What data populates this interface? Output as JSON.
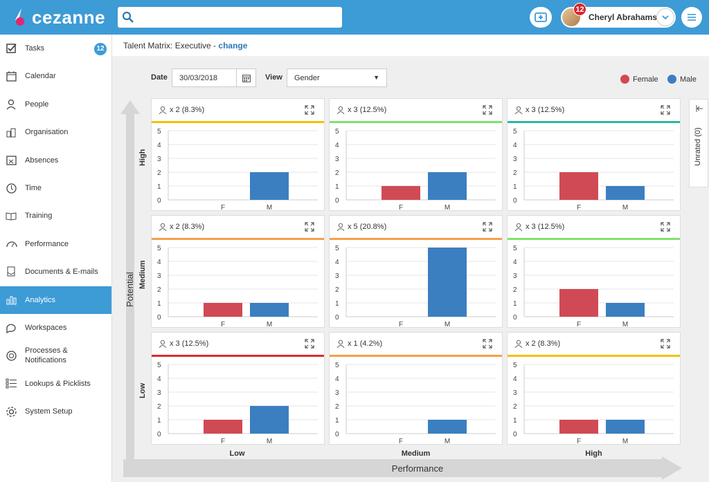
{
  "app": {
    "logo_text": "cezanne",
    "search_placeholder": ""
  },
  "user": {
    "name": "Cheryl Abrahams",
    "notifications": "12"
  },
  "sidebar": {
    "items": [
      {
        "label": "Tasks",
        "icon": "checkbox-icon",
        "badge": "12"
      },
      {
        "label": "Calendar",
        "icon": "calendar-icon"
      },
      {
        "label": "People",
        "icon": "people-icon"
      },
      {
        "label": "Organisation",
        "icon": "organisation-icon"
      },
      {
        "label": "Absences",
        "icon": "absences-icon"
      },
      {
        "label": "Time",
        "icon": "clock-icon"
      },
      {
        "label": "Training",
        "icon": "book-icon"
      },
      {
        "label": "Performance",
        "icon": "gauge-icon"
      },
      {
        "label": "Documents & E-mails",
        "icon": "documents-icon"
      },
      {
        "label": "Analytics",
        "icon": "bar-chart-icon",
        "active": true
      },
      {
        "label": "Workspaces",
        "icon": "chat-icon"
      },
      {
        "label": "Processes &",
        "label2": "Notifications",
        "icon": "processes-icon"
      },
      {
        "label": "Lookups & Picklists",
        "icon": "list-icon"
      },
      {
        "label": "System Setup",
        "icon": "gear-icon"
      }
    ]
  },
  "breadcrumb": {
    "title": "Talent Matrix: Executive - ",
    "link": "change"
  },
  "filters": {
    "date_label": "Date",
    "date_value": "30/03/2018",
    "view_label": "View",
    "view_value": "Gender"
  },
  "legend": [
    {
      "label": "Female",
      "color": "#d04a55"
    },
    {
      "label": "Male",
      "color": "#3b7fc1"
    }
  ],
  "axes": {
    "potential": "Potential",
    "performance": "Performance",
    "rows": [
      "High",
      "Medium",
      "Low"
    ],
    "cols": [
      "Low",
      "Medium",
      "High"
    ]
  },
  "unrated": "Unrated (0)",
  "chart_data": [
    {
      "type": "bar",
      "cell": "High potential / Low performance",
      "header": "x 2 (8.3%)",
      "color": "#f2c200",
      "categories": [
        "F",
        "M"
      ],
      "values": [
        0,
        2
      ],
      "ylim": [
        0,
        5
      ]
    },
    {
      "type": "bar",
      "cell": "High potential / Medium performance",
      "header": "x 3 (12.5%)",
      "color": "#7ee36b",
      "categories": [
        "F",
        "M"
      ],
      "values": [
        1,
        2
      ],
      "ylim": [
        0,
        5
      ]
    },
    {
      "type": "bar",
      "cell": "High potential / High performance",
      "header": "x 3 (12.5%)",
      "color": "#2ab7a1",
      "categories": [
        "F",
        "M"
      ],
      "values": [
        2,
        1
      ],
      "ylim": [
        0,
        5
      ]
    },
    {
      "type": "bar",
      "cell": "Medium potential / Low performance",
      "header": "x 2 (8.3%)",
      "color": "#f5a04a",
      "categories": [
        "F",
        "M"
      ],
      "values": [
        1,
        1
      ],
      "ylim": [
        0,
        5
      ]
    },
    {
      "type": "bar",
      "cell": "Medium potential / Medium performance",
      "header": "x 5 (20.8%)",
      "color": "#f5a04a",
      "categories": [
        "F",
        "M"
      ],
      "values": [
        0,
        5
      ],
      "ylim": [
        0,
        5
      ]
    },
    {
      "type": "bar",
      "cell": "Medium potential / High performance",
      "header": "x 3 (12.5%)",
      "color": "#7ee36b",
      "categories": [
        "F",
        "M"
      ],
      "values": [
        2,
        1
      ],
      "ylim": [
        0,
        5
      ]
    },
    {
      "type": "bar",
      "cell": "Low potential / Low performance",
      "header": "x 3 (12.5%)",
      "color": "#d92e2e",
      "categories": [
        "F",
        "M"
      ],
      "values": [
        1,
        2
      ],
      "ylim": [
        0,
        5
      ]
    },
    {
      "type": "bar",
      "cell": "Low potential / Medium performance",
      "header": "x 1 (4.2%)",
      "color": "#f5a04a",
      "categories": [
        "F",
        "M"
      ],
      "values": [
        0,
        1
      ],
      "ylim": [
        0,
        5
      ]
    },
    {
      "type": "bar",
      "cell": "Low potential / High performance",
      "header": "x 2 (8.3%)",
      "color": "#f2c200",
      "categories": [
        "F",
        "M"
      ],
      "values": [
        1,
        1
      ],
      "ylim": [
        0,
        5
      ]
    }
  ]
}
